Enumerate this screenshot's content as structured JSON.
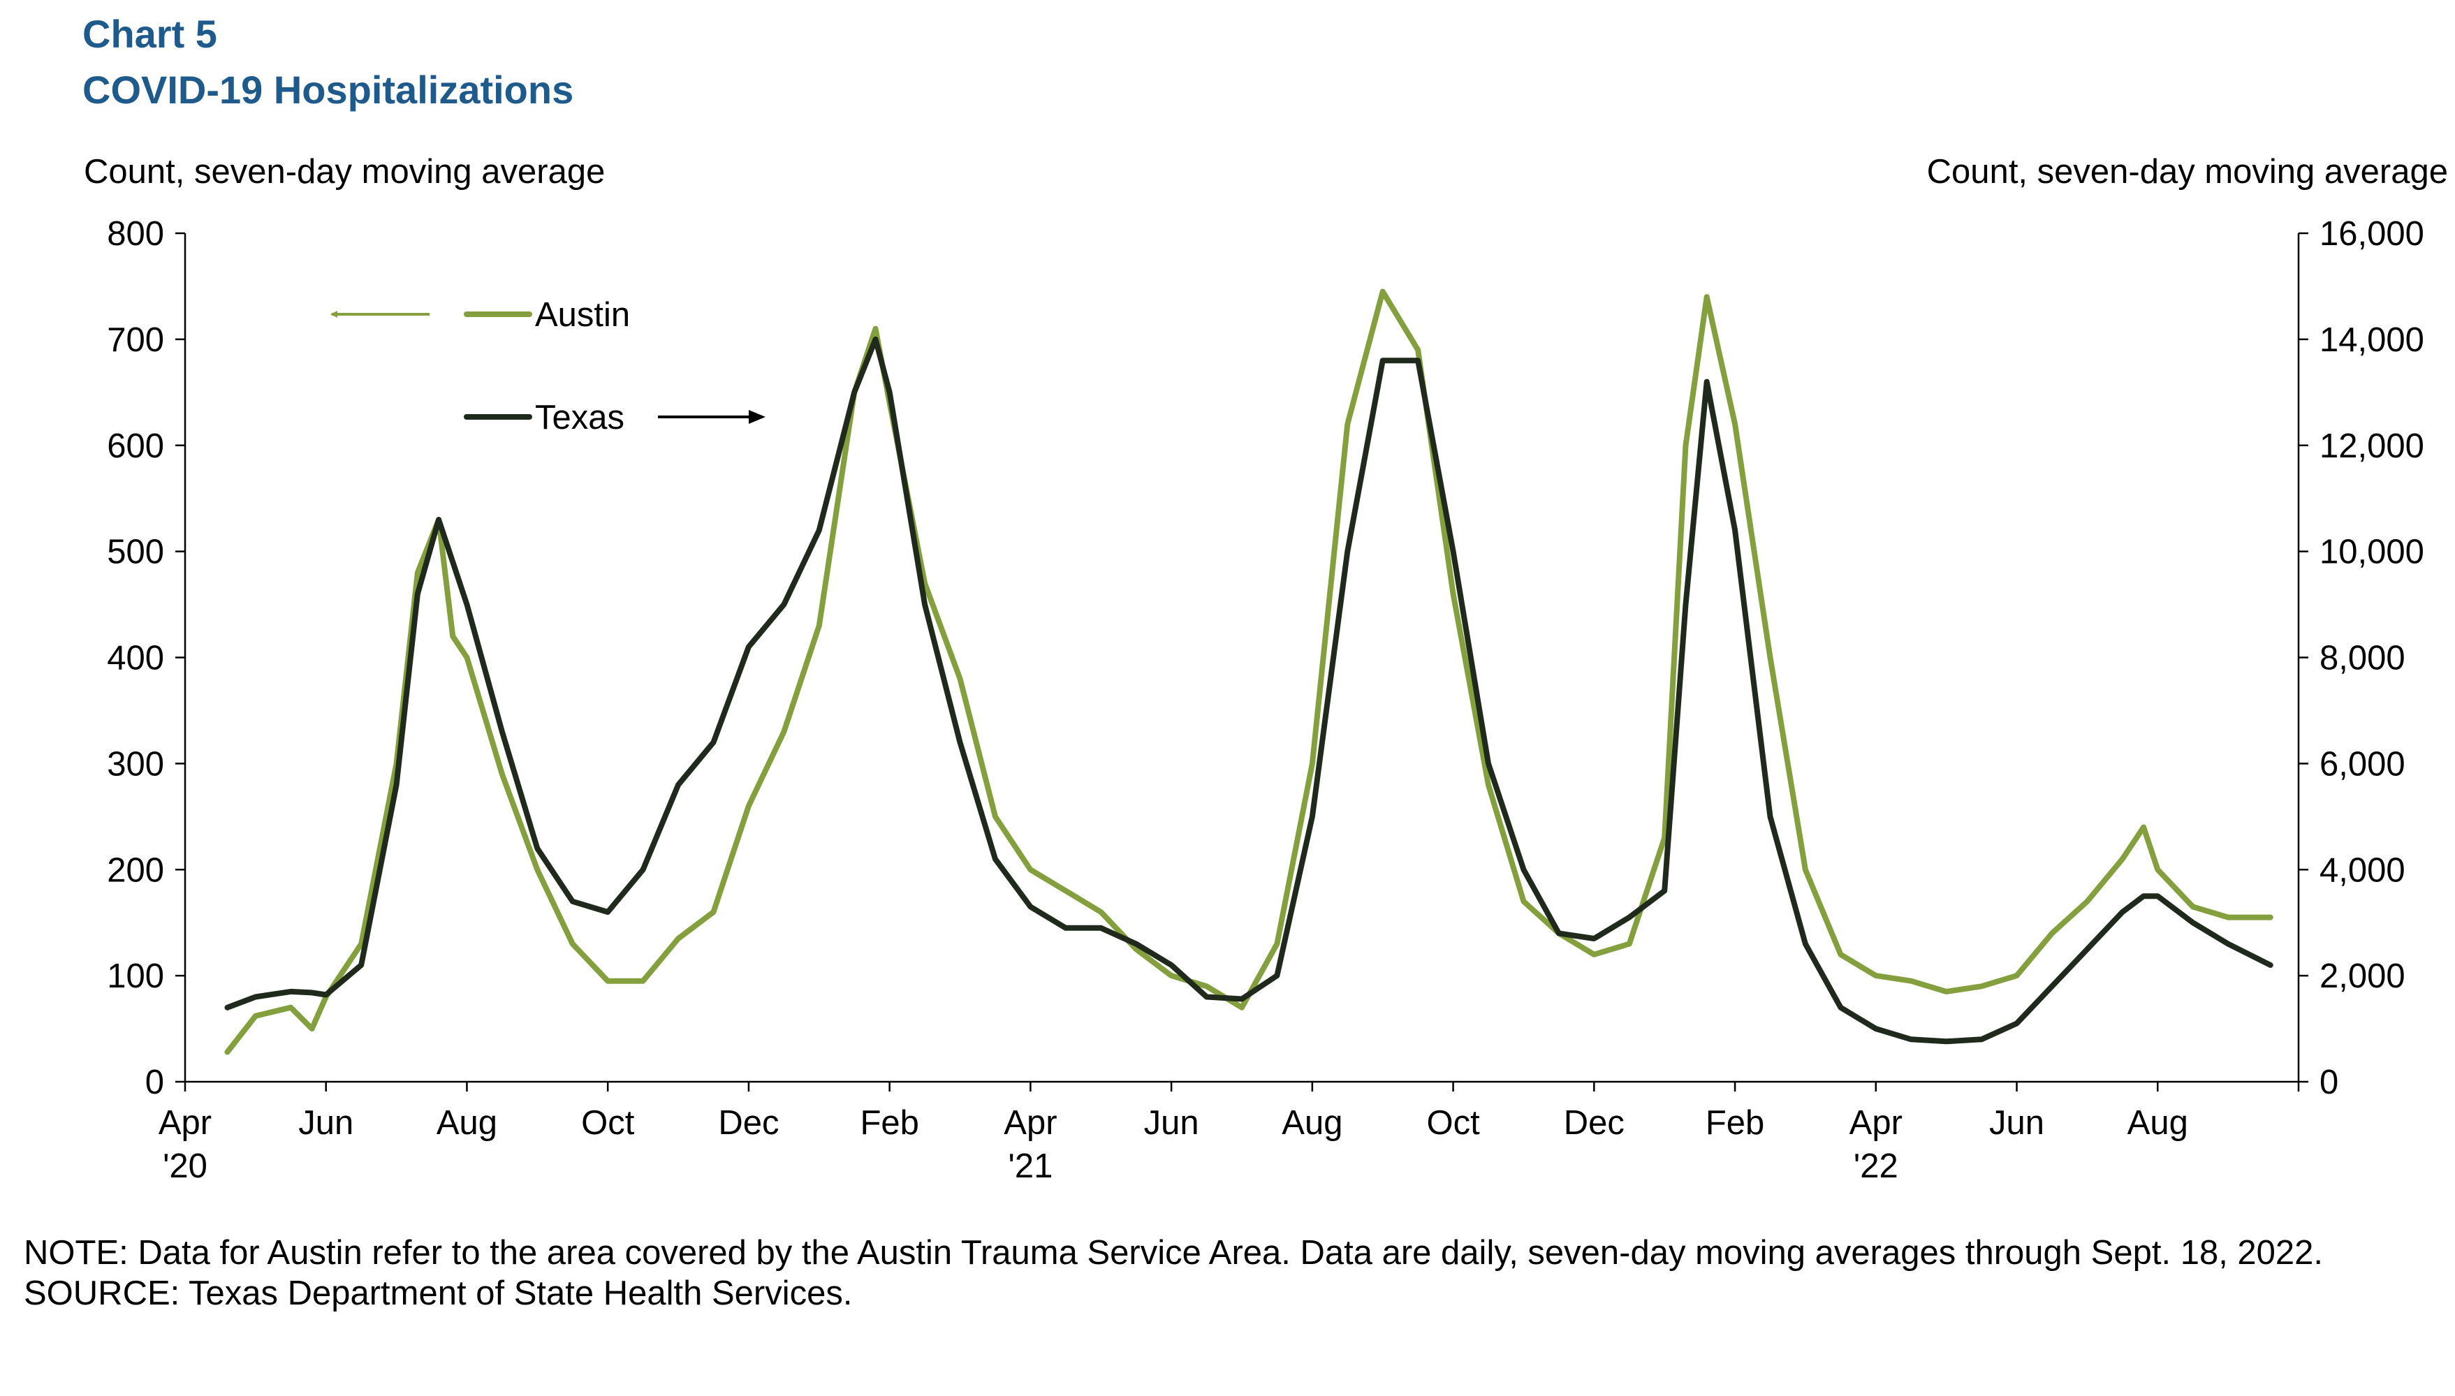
{
  "chart_data": {
    "type": "line",
    "title": "Chart 5",
    "subtitle": "COVID-19 Hospitalizations",
    "ylabel": "Count, seven-day moving average",
    "y2label": "Count, seven-day moving average",
    "note": "NOTE: Data for Austin refer to the area covered by the Austin Trauma Service Area. Data are daily, seven-day moving averages through Sept. 18, 2022.",
    "source": "SOURCE: Texas Department of State Health Services.",
    "xlim": [
      0,
      30
    ],
    "xticks": [
      {
        "value": 0,
        "label": "Apr '20"
      },
      {
        "value": 2,
        "label": "Jun"
      },
      {
        "value": 4,
        "label": "Aug"
      },
      {
        "value": 6,
        "label": "Oct"
      },
      {
        "value": 8,
        "label": "Dec"
      },
      {
        "value": 10,
        "label": "Feb"
      },
      {
        "value": 12,
        "label": "Apr '21"
      },
      {
        "value": 14,
        "label": "Jun"
      },
      {
        "value": 16,
        "label": "Aug"
      },
      {
        "value": 18,
        "label": "Oct"
      },
      {
        "value": 20,
        "label": "Dec"
      },
      {
        "value": 22,
        "label": "Feb"
      },
      {
        "value": 24,
        "label": "Apr '22"
      },
      {
        "value": 26,
        "label": "Jun"
      },
      {
        "value": 28,
        "label": "Aug"
      }
    ],
    "ylim": [
      0,
      800
    ],
    "yticks": [
      0,
      100,
      200,
      300,
      400,
      500,
      600,
      700,
      800
    ],
    "y2lim": [
      0,
      16000
    ],
    "y2ticks": [
      0,
      {
        "value": 2000,
        "label": "2,000"
      },
      {
        "value": 4000,
        "label": "4,000"
      },
      {
        "value": 6000,
        "label": "6,000"
      },
      {
        "value": 8000,
        "label": "8,000"
      },
      {
        "value": 10000,
        "label": "10,000"
      },
      {
        "value": 12000,
        "label": "12,000"
      },
      {
        "value": 14000,
        "label": "14,000"
      },
      {
        "value": 16000,
        "label": "16,000"
      }
    ],
    "x": [
      0.6,
      1,
      1.5,
      1.8,
      2,
      2.5,
      3,
      3.3,
      3.6,
      3.8,
      4,
      4.5,
      5,
      5.5,
      6,
      6.5,
      7,
      7.5,
      8,
      8.5,
      9,
      9.5,
      9.8,
      10,
      10.5,
      11,
      11.5,
      12,
      12.5,
      13,
      13.5,
      14,
      14.5,
      15,
      15.5,
      16,
      16.5,
      17,
      17.5,
      18,
      18.5,
      19,
      19.5,
      20,
      20.5,
      21,
      21.3,
      21.6,
      22,
      22.5,
      23,
      23.5,
      24,
      24.5,
      25,
      25.5,
      26,
      26.5,
      27,
      27.5,
      27.8,
      28,
      28.5,
      29,
      29.6
    ],
    "series": [
      {
        "name": "Austin",
        "color": "#84a03e",
        "axis": "y",
        "values": [
          28,
          62,
          70,
          50,
          80,
          130,
          300,
          480,
          530,
          420,
          400,
          290,
          200,
          130,
          95,
          95,
          135,
          160,
          260,
          330,
          430,
          650,
          710,
          640,
          470,
          380,
          250,
          200,
          180,
          160,
          125,
          100,
          90,
          70,
          130,
          300,
          620,
          745,
          690,
          460,
          280,
          170,
          140,
          120,
          130,
          230,
          600,
          740,
          620,
          400,
          200,
          120,
          100,
          95,
          85,
          90,
          100,
          140,
          170,
          210,
          240,
          200,
          165,
          155,
          155
        ]
      },
      {
        "name": "Texas",
        "color": "#1f2a1c",
        "axis": "y2",
        "values": [
          1400,
          1600,
          1700,
          1680,
          1640,
          2200,
          5600,
          9200,
          10600,
          9800,
          9000,
          6600,
          4400,
          3400,
          3200,
          4000,
          5600,
          6400,
          8200,
          9000,
          10400,
          13000,
          14000,
          13000,
          9000,
          6400,
          4200,
          3300,
          2900,
          2900,
          2600,
          2200,
          1600,
          1560,
          2000,
          5000,
          10000,
          13600,
          13600,
          10000,
          6000,
          4000,
          2800,
          2700,
          3100,
          3600,
          9000,
          13200,
          10400,
          5000,
          2600,
          1400,
          1000,
          800,
          760,
          800,
          1100,
          1800,
          2500,
          3200,
          3500,
          3500,
          3000,
          2600,
          2200
        ]
      }
    ]
  }
}
